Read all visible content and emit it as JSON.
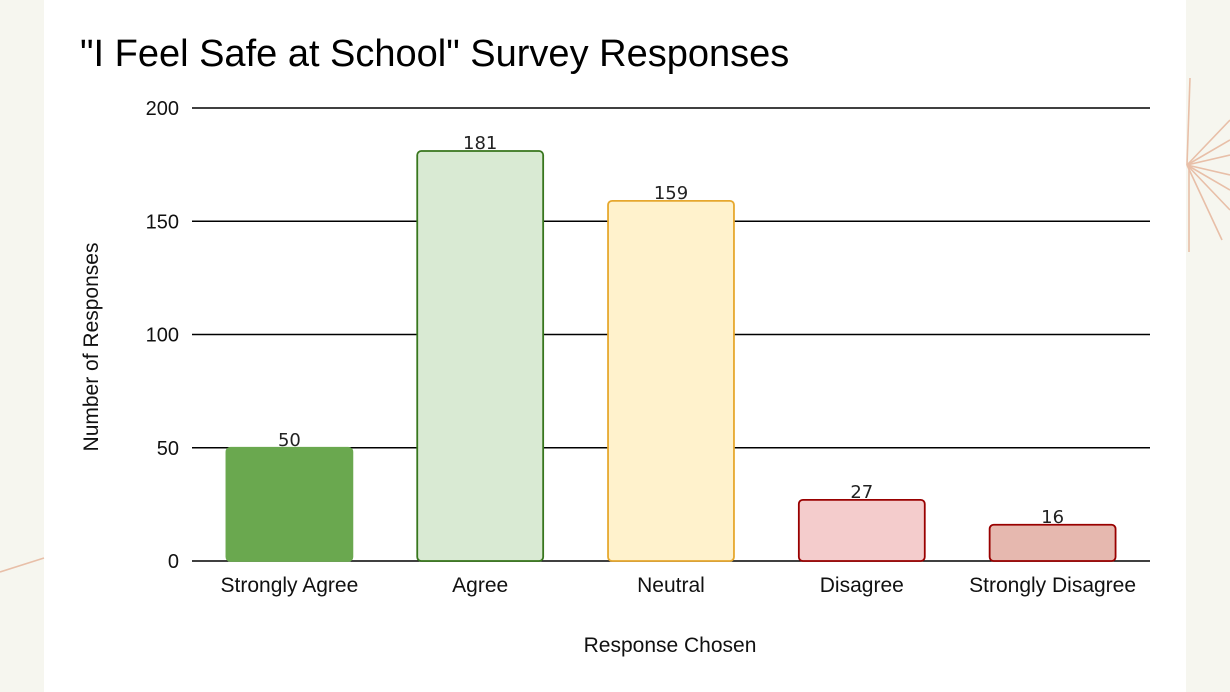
{
  "chart_data": {
    "type": "bar",
    "title": "\"I Feel Safe at School\" Survey Responses",
    "xlabel": "Response Chosen",
    "ylabel": "Number of Responses",
    "categories": [
      "Strongly Agree",
      "Agree",
      "Neutral",
      "Disagree",
      "Strongly Disagree"
    ],
    "values": [
      50,
      181,
      159,
      27,
      16
    ],
    "data_labels": [
      "50",
      "181",
      "159",
      "27",
      "16"
    ],
    "ylim": [
      0,
      200
    ],
    "yticks": [
      0,
      50,
      100,
      150,
      200
    ],
    "ytick_labels": [
      "0",
      "50",
      "100",
      "150",
      "200"
    ],
    "grid": true,
    "legend": "none",
    "bar_fills": [
      "#6aa84f",
      "#d9ead3",
      "#fff2cc",
      "#f4cccc",
      "#e6b8af"
    ],
    "bar_strokes": [
      "#6aa84f",
      "#38761d",
      "#e6a82e",
      "#990000",
      "#990000"
    ]
  }
}
